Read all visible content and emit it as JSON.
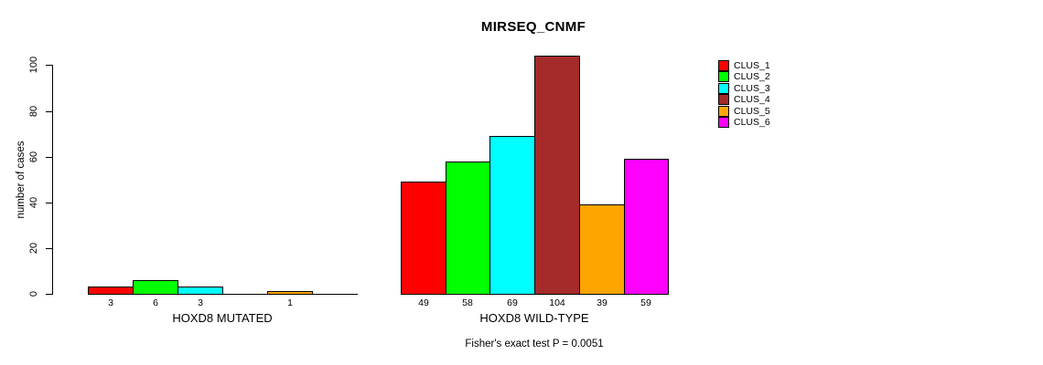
{
  "title": "MIRSEQ_CNMF",
  "footer": "Fisher's exact test P = 0.0051",
  "chart_data": {
    "type": "bar",
    "title": "MIRSEQ_CNMF",
    "xlabel": "",
    "ylabel": "number of cases",
    "ylim": [
      0,
      100
    ],
    "yticks": [
      0,
      20,
      40,
      60,
      80,
      100
    ],
    "grid": false,
    "legend_position": "right",
    "legend": [
      {
        "label": "CLUS_1",
        "color": "#FF0000"
      },
      {
        "label": "CLUS_2",
        "color": "#00FF00"
      },
      {
        "label": "CLUS_3",
        "color": "#00FFFF"
      },
      {
        "label": "CLUS_4",
        "color": "#A52A2A"
      },
      {
        "label": "CLUS_5",
        "color": "#FFA500"
      },
      {
        "label": "CLUS_6",
        "color": "#FF00FF"
      }
    ],
    "groups": [
      {
        "label": "HOXD8 MUTATED",
        "values": [
          3,
          6,
          3,
          0,
          1,
          0
        ],
        "bar_labels": [
          "3",
          "6",
          "3",
          "",
          "1",
          ""
        ]
      },
      {
        "label": "HOXD8 WILD-TYPE",
        "values": [
          49,
          58,
          69,
          104,
          39,
          59
        ],
        "bar_labels": [
          "49",
          "58",
          "69",
          "104",
          "39",
          "59"
        ]
      }
    ],
    "annotation": "Fisher's exact test P = 0.0051"
  }
}
